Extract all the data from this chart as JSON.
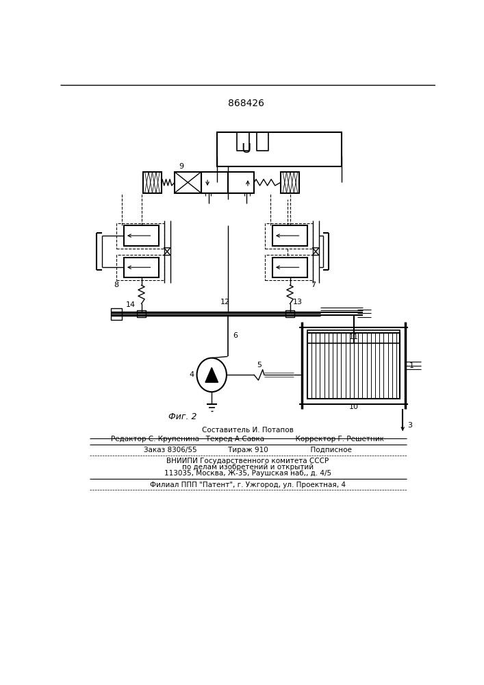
{
  "title": "868426",
  "fig_label": "Фиг. 2",
  "background_color": "#ffffff",
  "line_color": "#000000",
  "title_fontsize": 10,
  "footer_lines": [
    "Составитель И. Потапов",
    "Редактор С. Крупенина   Техред А.Савка              Корректор Г. Решетник",
    "Заказ 8306/55              Тираж 910                   Подписное",
    "ВНИИПИ Государственного комитета СССР",
    "по делам изобретений и открытий",
    "113035, Москва, Ж-35, Раушская наб,, д. 4/5",
    "Филиал ППП \"Патент\", г. Ужгород, ул. Проектная, 4"
  ]
}
